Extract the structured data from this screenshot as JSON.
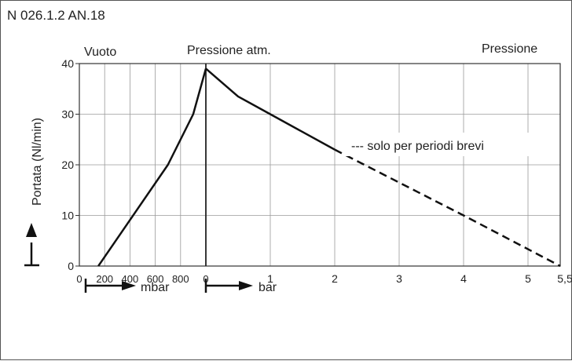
{
  "figure_code": "N 026.1.2 AN.18",
  "chart_data": {
    "type": "line",
    "ylabel": "Portata (Nl/min)",
    "ylim": [
      0,
      40
    ],
    "yticks": [
      "0",
      "10",
      "20",
      "30",
      "40"
    ],
    "region_labels": {
      "vacuum": "Vuoto",
      "atmospheric": "Pressione atm.",
      "pressure": "Pressione"
    },
    "vacuum_axis": {
      "unit": "mbar",
      "ticks": [
        "0",
        "200",
        "400",
        "600",
        "800",
        "0"
      ],
      "tick_values": [
        0,
        200,
        400,
        600,
        800,
        1000
      ],
      "series": {
        "x": [
          150,
          700,
          900,
          1000
        ],
        "y": [
          0,
          20,
          30,
          39
        ]
      }
    },
    "pressure_axis": {
      "unit": "bar",
      "ticks": [
        "1",
        "2",
        "3",
        "4",
        "5",
        "5,5"
      ],
      "tick_values": [
        1,
        2,
        3,
        4,
        5,
        5.5
      ],
      "series_solid": {
        "x": [
          0,
          0.5,
          1,
          1.5,
          2
        ],
        "y": [
          39,
          33.5,
          30,
          26.5,
          23
        ]
      },
      "series_dashed": {
        "x": [
          2,
          3,
          4,
          5.5
        ],
        "y": [
          23,
          16.5,
          10,
          0
        ]
      }
    },
    "legend": "--- solo per periodi brevi",
    "grid": true
  }
}
